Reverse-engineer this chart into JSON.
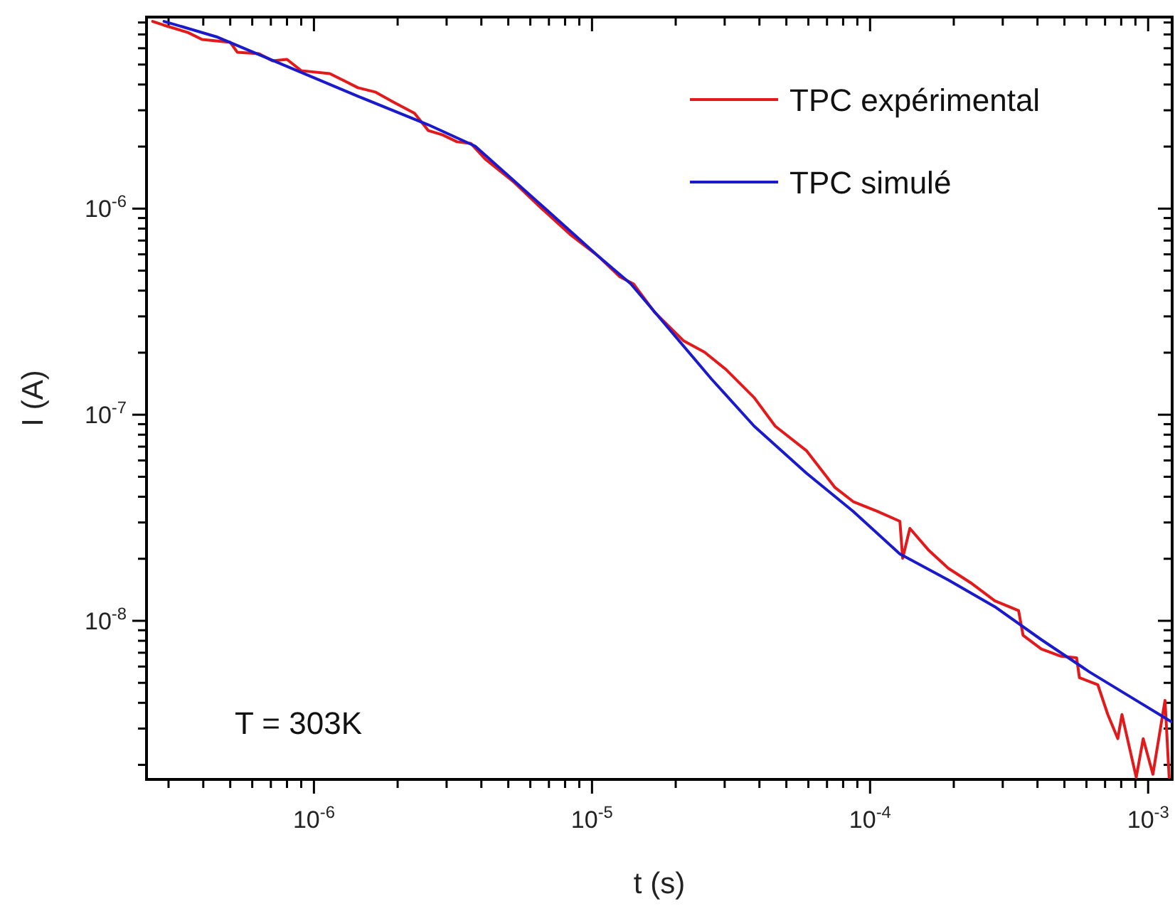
{
  "chart_data": {
    "type": "line",
    "xlabel": "t (s)",
    "ylabel": "I (A)",
    "log": "xy",
    "legend": "top right",
    "line_style": "solid",
    "annotations": [
      "T = 303K"
    ],
    "xlim": [
      2.5e-07,
      0.00122
    ],
    "ylim": [
      1.7e-09,
      8.5e-06
    ],
    "xticks": [
      {
        "value": 3e-07,
        "label": null
      },
      {
        "value": 4e-07,
        "label": null
      },
      {
        "value": 5e-07,
        "label": null
      },
      {
        "value": 6e-07,
        "label": null
      },
      {
        "value": 7e-07,
        "label": null
      },
      {
        "value": 8e-07,
        "label": null
      },
      {
        "value": 9e-07,
        "label": null
      },
      {
        "value": 1e-06,
        "label": "10$^{-6}$"
      },
      {
        "value": 2e-06,
        "label": null
      },
      {
        "value": 3e-06,
        "label": null
      },
      {
        "value": 4e-06,
        "label": null
      },
      {
        "value": 5e-06,
        "label": null
      },
      {
        "value": 6e-06,
        "label": null
      },
      {
        "value": 7e-06,
        "label": null
      },
      {
        "value": 8e-06,
        "label": null
      },
      {
        "value": 9e-06,
        "label": null
      },
      {
        "value": 1e-05,
        "label": "10$^{-5}$"
      },
      {
        "value": 2e-05,
        "label": null
      },
      {
        "value": 3e-05,
        "label": null
      },
      {
        "value": 4e-05,
        "label": null
      },
      {
        "value": 5e-05,
        "label": null
      },
      {
        "value": 6e-05,
        "label": null
      },
      {
        "value": 7e-05,
        "label": null
      },
      {
        "value": 8e-05,
        "label": null
      },
      {
        "value": 9e-05,
        "label": null
      },
      {
        "value": 0.0001,
        "label": "10$^{-4}$"
      },
      {
        "value": 0.0002,
        "label": null
      },
      {
        "value": 0.0003,
        "label": null
      },
      {
        "value": 0.0004,
        "label": null
      },
      {
        "value": 0.0005,
        "label": null
      },
      {
        "value": 0.0006,
        "label": null
      },
      {
        "value": 0.0007,
        "label": null
      },
      {
        "value": 0.0008,
        "label": null
      },
      {
        "value": 0.0009,
        "label": null
      },
      {
        "value": 0.001,
        "label": "10$^{-3}$"
      }
    ],
    "yticks": [
      {
        "value": 2e-09,
        "label": null
      },
      {
        "value": 3e-09,
        "label": null
      },
      {
        "value": 4e-09,
        "label": null
      },
      {
        "value": 5e-09,
        "label": null
      },
      {
        "value": 6e-09,
        "label": null
      },
      {
        "value": 7e-09,
        "label": null
      },
      {
        "value": 8e-09,
        "label": null
      },
      {
        "value": 9e-09,
        "label": null
      },
      {
        "value": 1e-08,
        "label": "10$^{-8}$"
      },
      {
        "value": 2e-08,
        "label": null
      },
      {
        "value": 3e-08,
        "label": null
      },
      {
        "value": 4e-08,
        "label": null
      },
      {
        "value": 5e-08,
        "label": null
      },
      {
        "value": 6e-08,
        "label": null
      },
      {
        "value": 7e-08,
        "label": null
      },
      {
        "value": 8e-08,
        "label": null
      },
      {
        "value": 9e-08,
        "label": null
      },
      {
        "value": 1e-07,
        "label": "10$^{-7}$"
      },
      {
        "value": 2e-07,
        "label": null
      },
      {
        "value": 3e-07,
        "label": null
      },
      {
        "value": 4e-07,
        "label": null
      },
      {
        "value": 5e-07,
        "label": null
      },
      {
        "value": 6e-07,
        "label": null
      },
      {
        "value": 7e-07,
        "label": null
      },
      {
        "value": 8e-07,
        "label": null
      },
      {
        "value": 9e-07,
        "label": null
      },
      {
        "value": 1e-06,
        "label": "10$^{-6}$"
      },
      {
        "value": 2e-06,
        "label": null
      },
      {
        "value": 3e-06,
        "label": null
      },
      {
        "value": 4e-06,
        "label": null
      },
      {
        "value": 5e-06,
        "label": null
      },
      {
        "value": 6e-06,
        "label": null
      },
      {
        "value": 7e-06,
        "label": null
      },
      {
        "value": 8e-06,
        "label": null
      }
    ],
    "series": [
      {
        "name": "TPC expérimental",
        "color": "#e31a1c",
        "x": [
          2.63e-07,
          2.89e-07,
          3.52e-07,
          3.96e-07,
          5e-07,
          5.3e-07,
          6.34e-07,
          7.11e-07,
          8e-07,
          9e-07,
          1.14e-06,
          1.28e-06,
          1.44e-06,
          1.66e-06,
          1.93e-06,
          2.3e-06,
          2.58e-06,
          2.9e-06,
          3.27e-06,
          3.67e-06,
          4.13e-06,
          5.22e-06,
          6.44e-06,
          8.34e-06,
          1.05e-05,
          1.26e-05,
          1.41e-05,
          1.68e-05,
          2.13e-05,
          2.54e-05,
          3.03e-05,
          3.83e-05,
          4.56e-05,
          5.9e-05,
          7.46e-05,
          8.69e-05,
          0.000106,
          0.000128,
          0.000131,
          0.000139,
          0.000162,
          0.000191,
          0.00023,
          0.000281,
          0.000342,
          0.000355,
          0.000413,
          0.000486,
          0.000553,
          0.000566,
          0.000659,
          0.000716,
          0.000778,
          0.000805,
          0.000906,
          0.00096,
          0.00104,
          0.00115,
          0.00119
        ],
        "values": [
          8.1e-06,
          7.76e-06,
          7.16e-06,
          6.62e-06,
          6.41e-06,
          5.74e-06,
          5.65e-06,
          5.21e-06,
          5.3e-06,
          4.67e-06,
          4.52e-06,
          4.18e-06,
          3.86e-06,
          3.68e-06,
          3.29e-06,
          2.9e-06,
          2.39e-06,
          2.28e-06,
          2.11e-06,
          2.07e-06,
          1.74e-06,
          1.35e-06,
          1.03e-06,
          7.5e-07,
          5.9e-07,
          4.67e-07,
          4.31e-07,
          3.14e-07,
          2.29e-07,
          2.01e-07,
          1.66e-07,
          1.21e-07,
          8.8e-08,
          6.7e-08,
          4.45e-08,
          3.79e-08,
          3.4e-08,
          3.04e-08,
          2.01e-08,
          2.81e-08,
          2.21e-08,
          1.8e-08,
          1.53e-08,
          1.25e-08,
          1.12e-08,
          8.5e-09,
          7.3e-09,
          6.73e-09,
          6.62e-09,
          5.3e-09,
          4.9e-09,
          3.51e-09,
          2.68e-09,
          3.51e-09,
          1.74e-09,
          2.68e-09,
          1.8e-09,
          4.11e-09,
          1.74e-09
        ]
      },
      {
        "name": "TPC simulé",
        "color": "#1a1acc",
        "x": [
          2.89e-07,
          4.46e-07,
          8e-07,
          1.44e-06,
          2.58e-06,
          3.8e-06,
          6.37e-06,
          1.05e-05,
          1.38e-05,
          2.69e-05,
          3.83e-05,
          5.9e-05,
          8.69e-05,
          0.000128,
          0.000191,
          0.000281,
          0.000413,
          0.000615,
          0.000906,
          0.00121
        ],
        "values": [
          8.1e-06,
          6.82e-06,
          4.9e-06,
          3.51e-06,
          2.55e-06,
          2.01e-06,
          1.08e-06,
          5.9e-07,
          4.31e-07,
          1.49e-07,
          8.8e-08,
          5.21e-08,
          3.4e-08,
          2.11e-08,
          1.58e-08,
          1.17e-08,
          8.1e-09,
          5.65e-09,
          4.11e-09,
          3.24e-09
        ]
      }
    ]
  }
}
